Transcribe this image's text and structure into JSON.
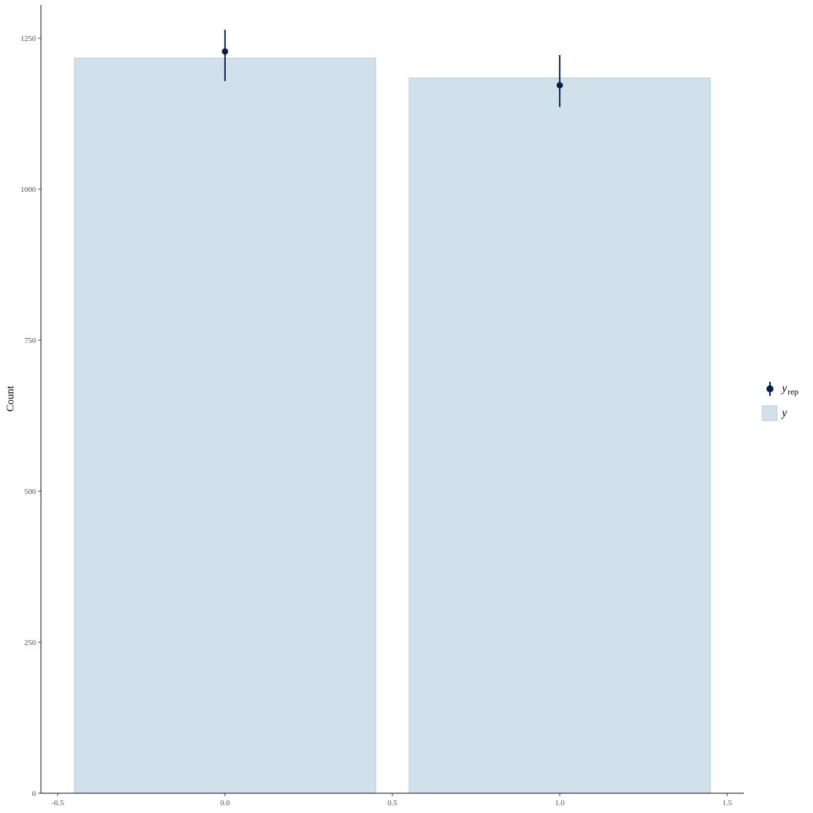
{
  "chart_data": {
    "type": "bar",
    "ylabel": "Count",
    "xlabel": "",
    "xlim": [
      -0.55,
      1.55
    ],
    "ylim": [
      0,
      1305
    ],
    "x_ticks": [
      {
        "value": -0.5,
        "label": "-0.5"
      },
      {
        "value": 0.0,
        "label": "0.0"
      },
      {
        "value": 0.5,
        "label": "0.5"
      },
      {
        "value": 1.0,
        "label": "1.0"
      },
      {
        "value": 1.5,
        "label": "1.5"
      }
    ],
    "y_ticks": [
      {
        "value": 0,
        "label": "0"
      },
      {
        "value": 250,
        "label": "250"
      },
      {
        "value": 500,
        "label": "500"
      },
      {
        "value": 750,
        "label": "750"
      },
      {
        "value": 1000,
        "label": "1000"
      },
      {
        "value": 1250,
        "label": "1250"
      }
    ],
    "bars": {
      "name": "y",
      "x": [
        0,
        1
      ],
      "width": 0.9,
      "values": [
        1217,
        1184
      ],
      "fill": "#d1e1ec",
      "stroke": "#b3cde0"
    },
    "points": {
      "name": "rep",
      "x": [
        0,
        1
      ],
      "median": [
        1228,
        1172
      ],
      "lower": [
        1179,
        1136
      ],
      "upper": [
        1264,
        1222
      ],
      "color": "#011f4b"
    },
    "legend": {
      "position": "right",
      "items": [
        {
          "symbol": "point-interval",
          "label": "y",
          "subscript": "rep"
        },
        {
          "symbol": "box",
          "label": "y",
          "subscript": ""
        }
      ]
    },
    "grid": false
  }
}
